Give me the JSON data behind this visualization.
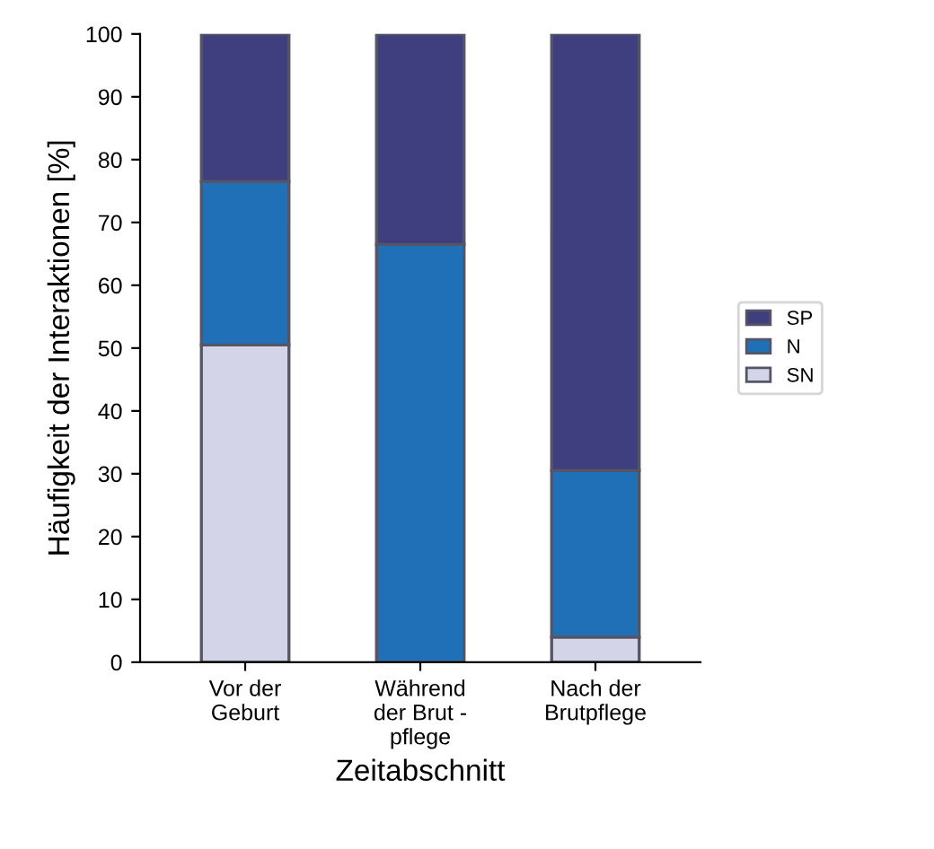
{
  "chart_data": {
    "type": "bar",
    "stacked": true,
    "xlabel": "Zeitabschnitt",
    "ylabel": "Häufigkeit der Interaktionen [%]",
    "categories": [
      "Vor der\nGeburt",
      "Während\nder Brut -\npflege",
      "Nach der\nBrutpflege"
    ],
    "series": [
      {
        "name": "SN",
        "color": "#d4d4e8",
        "values": [
          50.5,
          0,
          4
        ]
      },
      {
        "name": "N",
        "color": "#2070b8",
        "values": [
          26,
          66.5,
          26.5
        ]
      },
      {
        "name": "SP",
        "color": "#3f3f7f",
        "values": [
          23.5,
          33.5,
          69.5
        ]
      }
    ],
    "ylim": [
      0,
      100
    ],
    "yticks": [
      0,
      10,
      20,
      30,
      40,
      50,
      60,
      70,
      80,
      90,
      100
    ],
    "grid": false,
    "legend": "right"
  }
}
